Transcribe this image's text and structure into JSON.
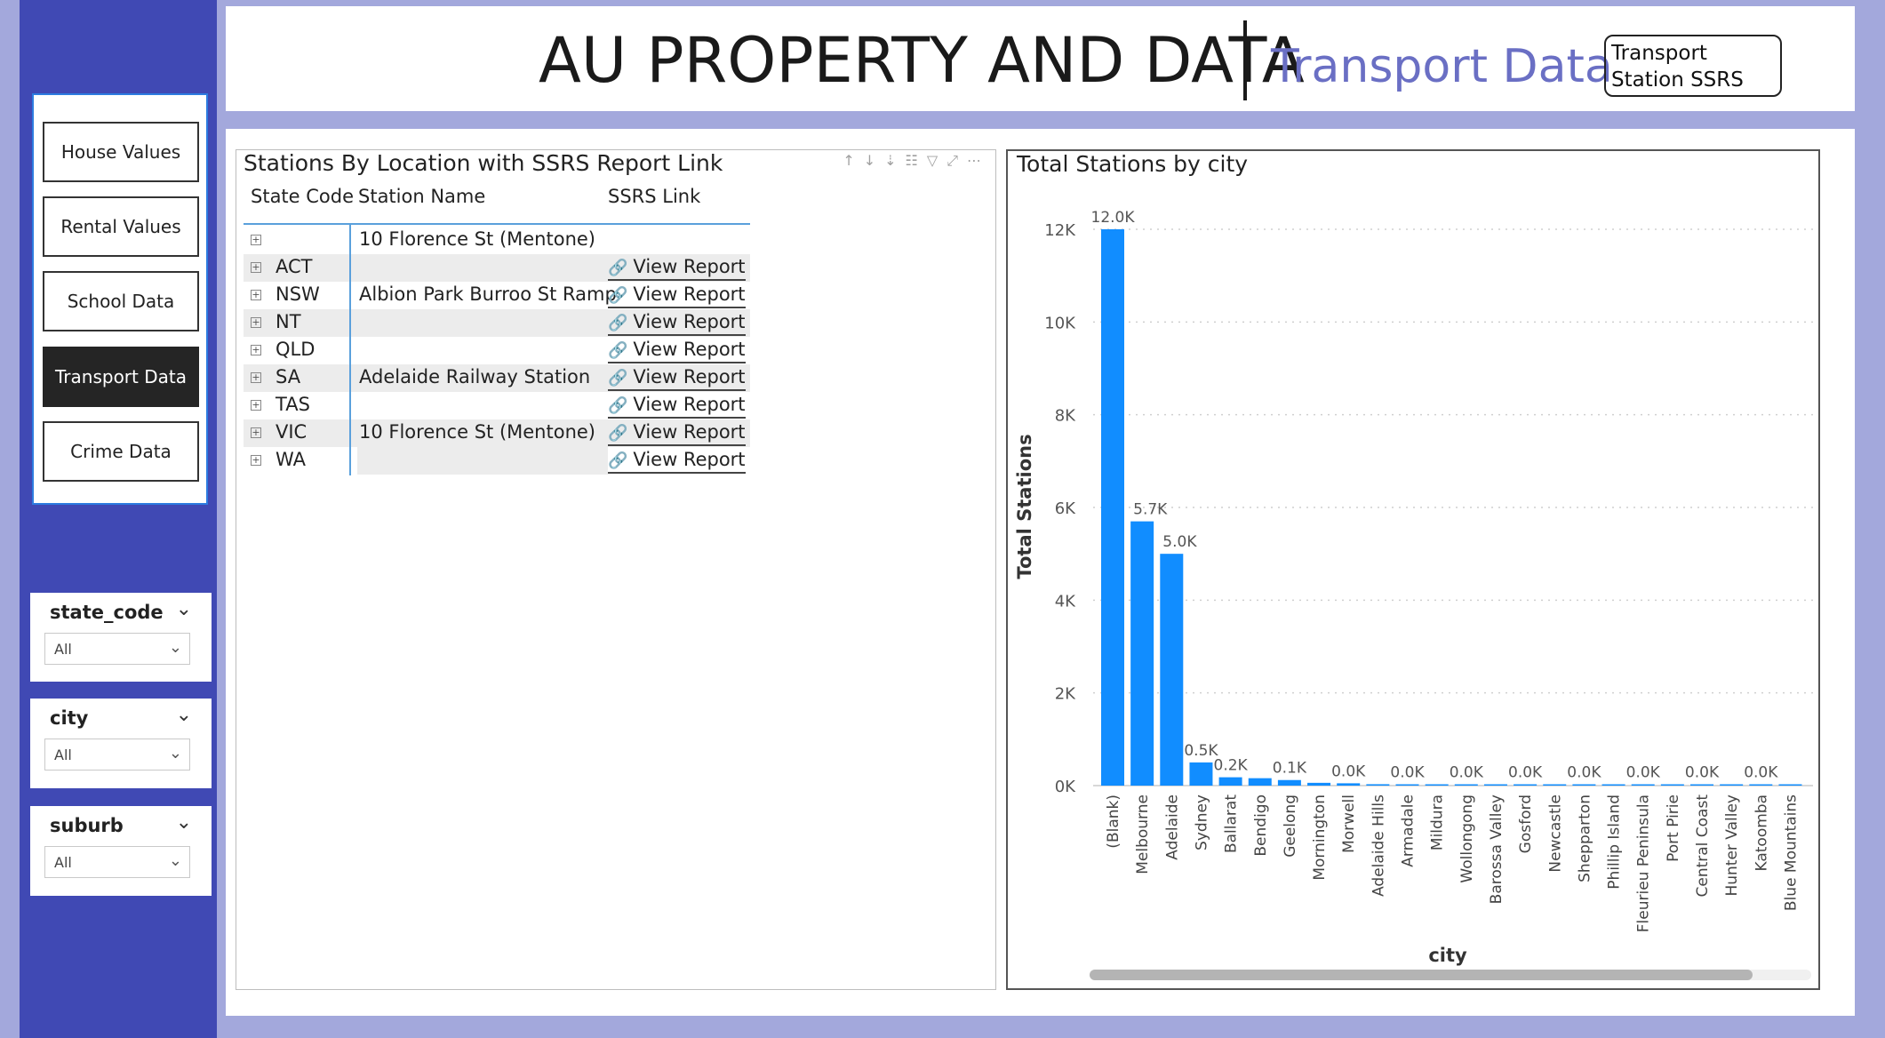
{
  "header": {
    "title": "AU PROPERTY AND DATA",
    "subtitle": "Transport Data",
    "ssrs_button": "Transport Station SSRS"
  },
  "nav": {
    "items": [
      {
        "label": "House Values",
        "active": false
      },
      {
        "label": "Rental Values",
        "active": false
      },
      {
        "label": "School Data",
        "active": false
      },
      {
        "label": "Transport Data",
        "active": true
      },
      {
        "label": "Crime Data",
        "active": false
      }
    ]
  },
  "slicers": [
    {
      "title": "state_code",
      "value": "All"
    },
    {
      "title": "city",
      "value": "All"
    },
    {
      "title": "suburb",
      "value": "All"
    }
  ],
  "table": {
    "title": "Stations By Location with SSRS Report Link",
    "columns": [
      "State Code",
      "Station Name",
      "SSRS Link"
    ],
    "rows": [
      {
        "state": "",
        "name": "10 Florence St (Mentone)",
        "link": ""
      },
      {
        "state": "ACT",
        "name": "",
        "link": "View Report"
      },
      {
        "state": "NSW",
        "name": "Albion Park Burroo St Ramp",
        "link": "View Report"
      },
      {
        "state": "NT",
        "name": "",
        "link": "View Report"
      },
      {
        "state": "QLD",
        "name": "",
        "link": "View Report"
      },
      {
        "state": "SA",
        "name": "Adelaide Railway Station",
        "link": "View Report"
      },
      {
        "state": "TAS",
        "name": "",
        "link": "View Report"
      },
      {
        "state": "VIC",
        "name": "10 Florence St (Mentone)",
        "link": "View Report"
      },
      {
        "state": "WA",
        "name": "",
        "link": "View Report"
      }
    ]
  },
  "chart_data": {
    "type": "bar",
    "title": "Total Stations by city",
    "xlabel": "city",
    "ylabel": "Total Stations",
    "ylim": [
      0,
      12000
    ],
    "yticks": [
      "0K",
      "2K",
      "4K",
      "6K",
      "8K",
      "10K",
      "12K"
    ],
    "grid": true,
    "color": "#118dff",
    "categories": [
      "(Blank)",
      "Melbourne",
      "Adelaide",
      "Sydney",
      "Ballarat",
      "Bendigo",
      "Geelong",
      "Mornington",
      "Morwell",
      "Adelaide Hills",
      "Armadale",
      "Mildura",
      "Wollongong",
      "Barossa Valley",
      "Gosford",
      "Newcastle",
      "Shepparton",
      "Phillip Island",
      "Fleurieu Peninsula",
      "Port Pirie",
      "Central Coast",
      "Hunter Valley",
      "Katoomba",
      "Blue Mountains"
    ],
    "values": [
      12000,
      5700,
      5000,
      500,
      180,
      160,
      120,
      60,
      50,
      30,
      20,
      18,
      16,
      14,
      12,
      11,
      10,
      9,
      8,
      7,
      6,
      5,
      5,
      4
    ],
    "data_labels": [
      "12.0K",
      "5.7K",
      "5.0K",
      "0.5K",
      "0.2K",
      "",
      "0.1K",
      "",
      "0.0K",
      "",
      "0.0K",
      "",
      "0.0K",
      "",
      "0.0K",
      "",
      "0.0K",
      "",
      "0.0K",
      "",
      "0.0K",
      "",
      "0.0K",
      ""
    ]
  }
}
